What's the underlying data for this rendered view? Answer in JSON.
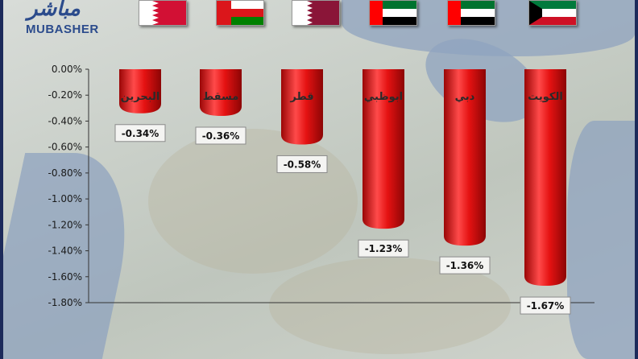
{
  "brand": {
    "arabic": "مباشر",
    "english": "MUBASHER"
  },
  "flags": [
    "bahrain-flag",
    "oman-flag",
    "qatar-flag",
    "uae-flag",
    "uae-flag",
    "kuwait-flag"
  ],
  "colors": {
    "bar": "#e01010",
    "bar_dark": "#8c0505",
    "bar_light": "#ff5a5a"
  },
  "chart_data": {
    "type": "bar",
    "categories": [
      "البحرين",
      "مسقط",
      "قطر",
      "ابوظبي",
      "دبي",
      "الكويت"
    ],
    "values": [
      -0.34,
      -0.36,
      -0.58,
      -1.23,
      -1.36,
      -1.67
    ],
    "value_labels": [
      "-0.34%",
      "-0.36%",
      "-0.58%",
      "-1.23%",
      "-1.36%",
      "-1.67%"
    ],
    "y_ticks": [
      "0.00%",
      "-0.20%",
      "-0.40%",
      "-0.60%",
      "-0.80%",
      "-1.00%",
      "-1.20%",
      "-1.40%",
      "-1.60%",
      "-1.80%"
    ],
    "ylim": [
      -1.8,
      0
    ],
    "grid": false
  }
}
